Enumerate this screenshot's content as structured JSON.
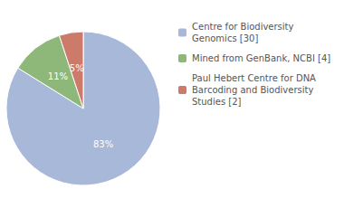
{
  "chart_data": {
    "type": "pie",
    "categories": [
      "Centre for Biodiversity\nGenomics [30]",
      "Mined from GenBank, NCBI [4]",
      "Paul Hebert Centre for DNA\nBarcoding and Biodiversity\nStudies [2]"
    ],
    "values": [
      83,
      11,
      5
    ],
    "value_labels": [
      "83%",
      "11%",
      "5%"
    ],
    "colors": [
      "#a8b8d8",
      "#8db87a",
      "#cc7a6a"
    ],
    "data_labels": true,
    "legend": "right"
  }
}
